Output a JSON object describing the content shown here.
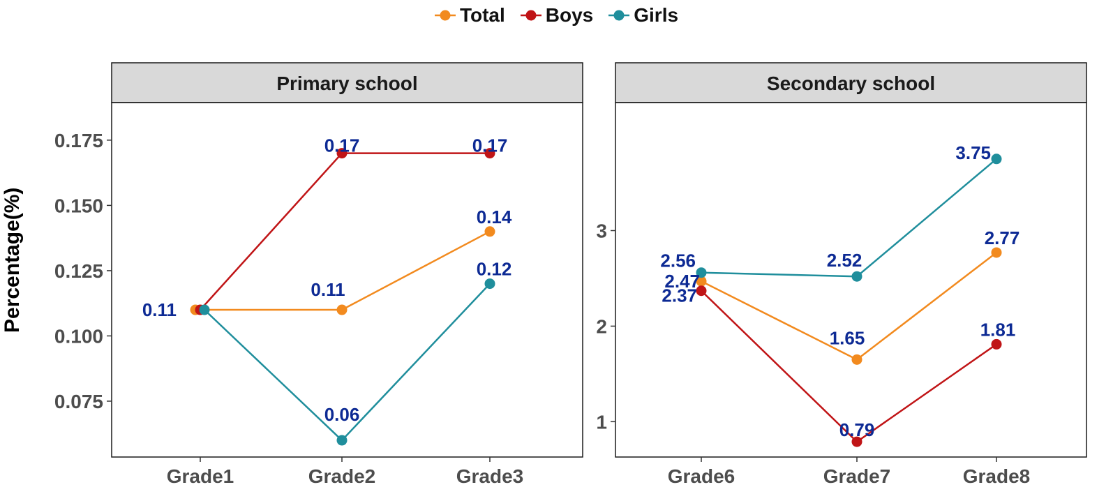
{
  "legend": {
    "items": [
      {
        "label": "Total",
        "color": "#F28A1E"
      },
      {
        "label": "Boys",
        "color": "#C01416"
      },
      {
        "label": "Girls",
        "color": "#1F8E9C"
      }
    ]
  },
  "chart_data": [
    {
      "type": "line",
      "title": "Primary school",
      "ylabel": "Percentage(%)",
      "categories": [
        "Grade1",
        "Grade2",
        "Grade3"
      ],
      "ylim": [
        0.0536,
        0.1894
      ],
      "yticks": [
        0.075,
        0.1,
        0.125,
        0.15,
        0.175
      ],
      "ytick_labels": [
        "0.075",
        "0.100",
        "0.125",
        "0.150",
        "0.175"
      ],
      "series": [
        {
          "name": "Total",
          "values": [
            0.11,
            0.11,
            0.14
          ],
          "labels": [
            "0.11",
            "0.11",
            "0.14"
          ]
        },
        {
          "name": "Boys",
          "values": [
            0.11,
            0.17,
            0.17
          ],
          "labels": [
            "",
            "0.17",
            "0.17"
          ]
        },
        {
          "name": "Girls",
          "values": [
            0.11,
            0.06,
            0.12
          ],
          "labels": [
            "",
            "0.06",
            "0.12"
          ]
        }
      ]
    },
    {
      "type": "line",
      "title": "Secondary school",
      "categories": [
        "Grade6",
        "Grade7",
        "Grade8"
      ],
      "ylim": [
        0.63,
        4.34
      ],
      "yticks": [
        1,
        2,
        3
      ],
      "ytick_labels": [
        "1",
        "2",
        "3"
      ],
      "series": [
        {
          "name": "Total",
          "values": [
            2.47,
            1.65,
            2.77
          ],
          "labels": [
            "2.47",
            "1.65",
            "2.77"
          ]
        },
        {
          "name": "Boys",
          "values": [
            2.37,
            0.79,
            1.81
          ],
          "labels": [
            "2.37",
            "0.79",
            "1.81"
          ]
        },
        {
          "name": "Girls",
          "values": [
            2.56,
            2.52,
            3.75
          ],
          "labels": [
            "2.56",
            "2.52",
            "3.75"
          ]
        }
      ]
    }
  ]
}
